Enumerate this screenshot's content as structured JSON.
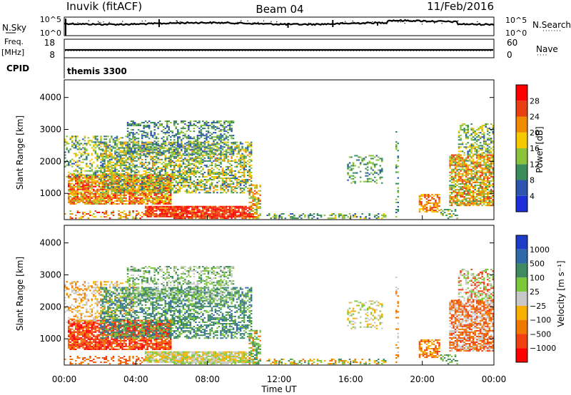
{
  "header": {
    "station": "Inuvik (fitACF)",
    "beam": "Beam 04",
    "date": "11/Feb/2016"
  },
  "top_panels": {
    "nsky_label": "N.Sky",
    "nsky_ticks": [
      "10^5",
      "10^0"
    ],
    "nsearch_label": "N.Search",
    "nsearch_ticks": [
      "10^5",
      "10^0"
    ],
    "freq_label": "Freq.",
    "freq_unit": "[MHz]",
    "freq_ticks": [
      "18",
      "8"
    ],
    "nave_label": "Nave",
    "nave_ticks": [
      "60",
      "0"
    ],
    "cpid_label": "CPID",
    "cpid_value": "themis 3300"
  },
  "chart_data": [
    {
      "type": "heatmap",
      "name": "power",
      "ylabel": "Slant Range [km]",
      "y_ticks": [
        "4000",
        "3000",
        "2000",
        "1000"
      ],
      "ylim": [
        180,
        4550
      ],
      "colorbar_label": "Power [dB]",
      "colorbar_ticks": [
        "28",
        "24",
        "20",
        "16",
        "12",
        "8",
        "4"
      ],
      "colorbar_colors": [
        "#1e2ed8",
        "#2d55b0",
        "#3a8d5a",
        "#8ac33a",
        "#f5c800",
        "#f08a00",
        "#e84010",
        "#ff0000"
      ],
      "colorbar_range": [
        0,
        32
      ]
    },
    {
      "type": "heatmap",
      "name": "velocity",
      "ylabel": "Slant Range [km]",
      "y_ticks": [
        "4000",
        "3000",
        "2000",
        "1000"
      ],
      "ylim": [
        180,
        4550
      ],
      "colorbar_label": "Velocity [m s⁻¹]",
      "colorbar_ticks": [
        "1000",
        "500",
        "100",
        "25",
        "−25",
        "−100",
        "−500",
        "−1000"
      ],
      "colorbar_colors": [
        "#1e3cc8",
        "#2f6aa8",
        "#3f8a60",
        "#7cc83a",
        "#c8c8c8",
        "#f5b000",
        "#f07800",
        "#f04010",
        "#ff0000"
      ],
      "xlabel": "Time UT",
      "x_ticks": [
        "00:00",
        "04:00",
        "08:00",
        "12:00",
        "16:00",
        "20:00",
        "00:00"
      ],
      "xlim": [
        0,
        24
      ]
    }
  ]
}
